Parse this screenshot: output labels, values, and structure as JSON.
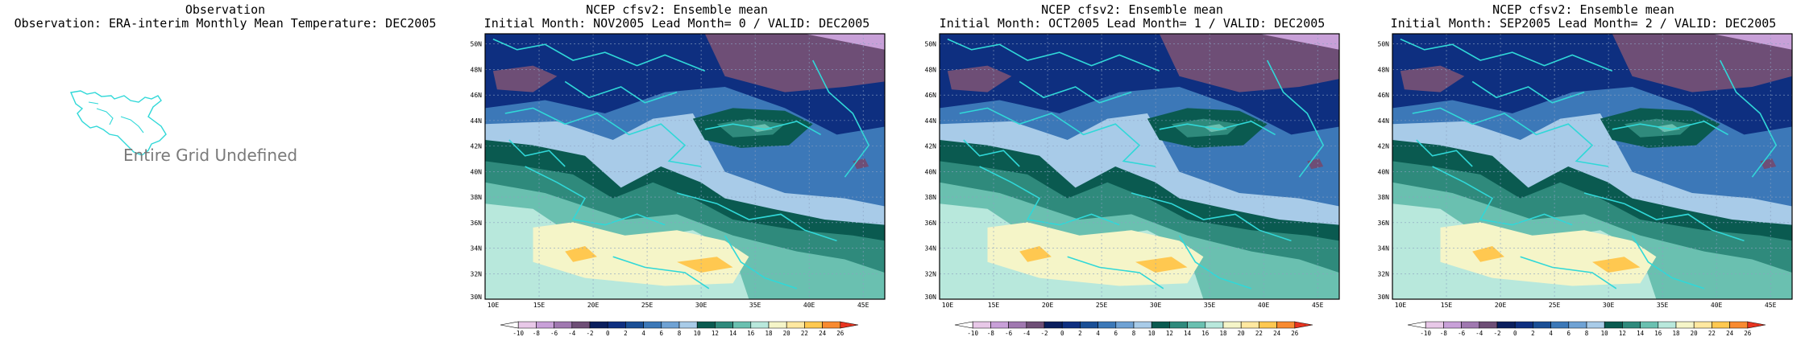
{
  "observation": {
    "title1": "Observation",
    "title2": "Observation: ERA-interim Monthly Mean Temperature: DEC2005",
    "undefined_text": "Entire Grid Undefined"
  },
  "panels": [
    {
      "title1": "NCEP cfsv2: Ensemble mean",
      "title2": "Initial Month: NOV2005   Lead Month= 0 / VALID: DEC2005"
    },
    {
      "title1": "NCEP cfsv2: Ensemble mean",
      "title2": "Initial Month: OCT2005   Lead Month= 1 / VALID: DEC2005"
    },
    {
      "title1": "NCEP cfsv2: Ensemble mean",
      "title2": "Initial Month: SEP2005   Lead Month= 2 / VALID: DEC2005"
    }
  ],
  "axes": {
    "lat_labels": [
      "30N",
      "32N",
      "34N",
      "36N",
      "38N",
      "40N",
      "42N",
      "44N",
      "46N",
      "48N",
      "50N"
    ],
    "lon_labels": [
      "10E",
      "15E",
      "20E",
      "25E",
      "30E",
      "35E",
      "40E",
      "45E"
    ]
  },
  "colorbar": {
    "labels": [
      "-10",
      "-8",
      "-6",
      "-4",
      "-2",
      "0",
      "2",
      "4",
      "6",
      "8",
      "10",
      "12",
      "14",
      "16",
      "18",
      "20",
      "22",
      "24",
      "26"
    ],
    "colors": [
      "#ffffff",
      "#e8c8e8",
      "#c8a0d8",
      "#a078b0",
      "#6e4e76",
      "#0a1f5e",
      "#0e2f80",
      "#1a4f96",
      "#3c78b8",
      "#6fa2d4",
      "#a8cbe8",
      "#0a5a50",
      "#2f8a7c",
      "#6ac0b0",
      "#b8e8dc",
      "#f5f5c8",
      "#ffe8a0",
      "#ffc850",
      "#f88a30",
      "#e83420"
    ]
  },
  "colors": {
    "coast": "#30d8d8",
    "undefined_text": "#7a7a7a"
  }
}
